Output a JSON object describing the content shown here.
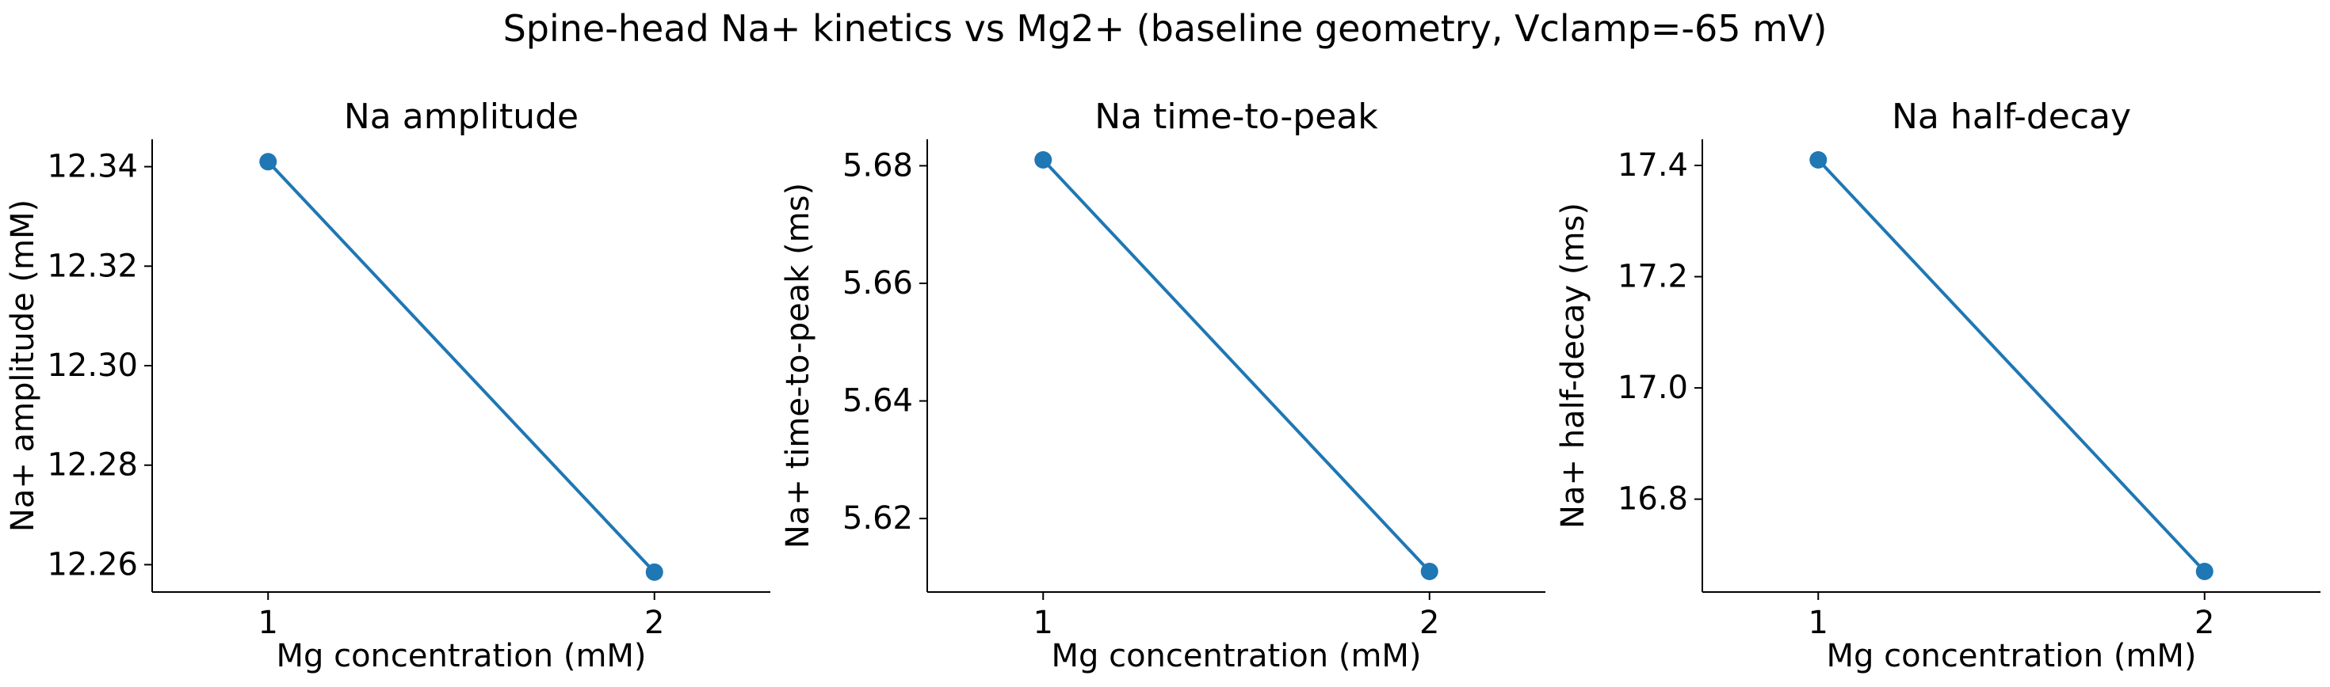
{
  "title": "Spine-head Na+ kinetics vs Mg2+ (baseline geometry, Vclamp=-65 mV)",
  "colors": {
    "series": "#1f77b4",
    "axis": "#000000"
  },
  "chart_data": [
    {
      "type": "line",
      "title": "Na amplitude",
      "xlabel": "Mg concentration (mM)",
      "ylabel": "Na+ amplitude (mM)",
      "x": [
        1,
        2
      ],
      "xticks": [
        "1",
        "2"
      ],
      "xlim": [
        0.7,
        2.3
      ],
      "series": [
        {
          "values": [
            12.341,
            12.2585
          ]
        }
      ],
      "ylim": [
        12.2545,
        12.3455
      ],
      "yticks": [
        12.26,
        12.28,
        12.3,
        12.32,
        12.34
      ],
      "ytick_labels": [
        "12.26",
        "12.28",
        "12.30",
        "12.32",
        "12.34"
      ],
      "grid": false,
      "markers": true
    },
    {
      "type": "line",
      "title": "Na time-to-peak",
      "xlabel": "Mg concentration (mM)",
      "ylabel": "Na+ time-to-peak (ms)",
      "x": [
        1,
        2
      ],
      "xticks": [
        "1",
        "2"
      ],
      "xlim": [
        0.7,
        2.3
      ],
      "series": [
        {
          "values": [
            5.681,
            5.611
          ]
        }
      ],
      "ylim": [
        5.6075,
        5.6845
      ],
      "yticks": [
        5.62,
        5.64,
        5.66,
        5.68
      ],
      "ytick_labels": [
        "5.62",
        "5.64",
        "5.66",
        "5.68"
      ],
      "grid": false,
      "markers": true
    },
    {
      "type": "line",
      "title": "Na half-decay",
      "xlabel": "Mg concentration (mM)",
      "ylabel": "Na+ half-decay (ms)",
      "x": [
        1,
        2
      ],
      "xticks": [
        "1",
        "2"
      ],
      "xlim": [
        0.7,
        2.3
      ],
      "series": [
        {
          "values": [
            17.41,
            16.67
          ]
        }
      ],
      "ylim": [
        16.633,
        17.447
      ],
      "yticks": [
        16.8,
        17.0,
        17.2,
        17.4
      ],
      "ytick_labels": [
        "16.8",
        "17.0",
        "17.2",
        "17.4"
      ],
      "grid": false,
      "markers": true
    }
  ]
}
